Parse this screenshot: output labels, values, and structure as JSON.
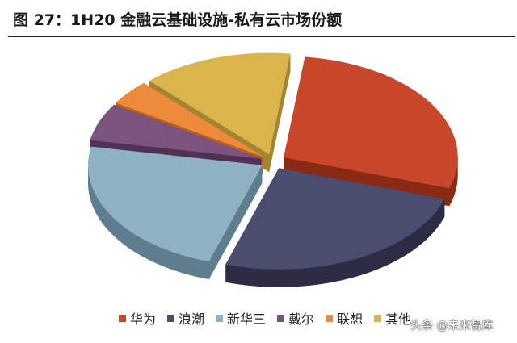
{
  "figure": {
    "title": "图 27：1H20 金融云基础设施-私有云市场份额",
    "watermark": "头条 @未来智库"
  },
  "chart_data": {
    "type": "pie",
    "style": "3d-exploded",
    "title": "",
    "legend_position": "bottom",
    "slices": [
      {
        "label": "华为",
        "value": 28,
        "color": "#C9462A",
        "side_color": "#8A2A15"
      },
      {
        "label": "浪潮",
        "value": 25,
        "color": "#4B4D6E",
        "side_color": "#2C2D45"
      },
      {
        "label": "新华三",
        "value": 23,
        "color": "#8FB1C4",
        "side_color": "#5E7E8F"
      },
      {
        "label": "戴尔",
        "value": 6,
        "color": "#7C527F",
        "side_color": "#4F3152"
      },
      {
        "label": "联想",
        "value": 4,
        "color": "#ED8B3A",
        "side_color": "#B86220"
      },
      {
        "label": "其他",
        "value": 14,
        "color": "#D9B54C",
        "side_color": "#A38430"
      }
    ]
  }
}
